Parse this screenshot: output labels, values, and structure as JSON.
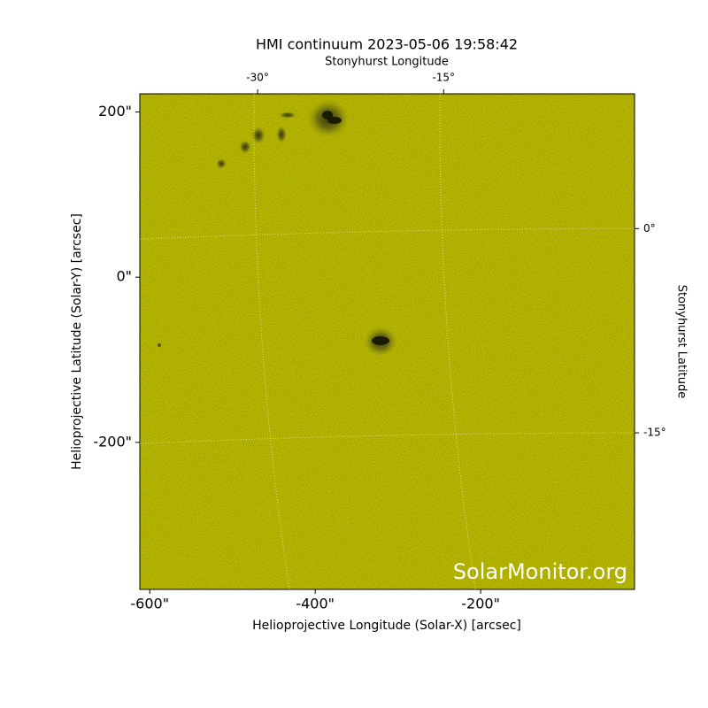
{
  "chart_data": {
    "type": "image",
    "title": "HMI continuum 2023-05-06 19:58:42",
    "x_label": "Helioprojective Longitude (Solar-X) [arcsec]",
    "y_label": "Helioprojective Latitude (Solar-Y) [arcsec]",
    "x2_label": "Stonyhurst Longitude",
    "y2_label": "Stonyhurst Latitude",
    "watermark": "SolarMonitor.org",
    "color": "#c9c900",
    "xlim": [
      -612,
      -14
    ],
    "ylim": [
      -378,
      222
    ],
    "xticks": [
      {
        "value": -600,
        "label": "-600\""
      },
      {
        "value": -400,
        "label": "-400\""
      },
      {
        "value": -200,
        "label": "-200\""
      }
    ],
    "yticks": [
      {
        "value": 200,
        "label": "200\""
      },
      {
        "value": 0,
        "label": "0\""
      },
      {
        "value": -200,
        "label": "-200\""
      }
    ],
    "x2lim": [
      -39.5,
      0.4
    ],
    "x2ticks": [
      {
        "value": -30,
        "label": "-30°"
      },
      {
        "value": -15,
        "label": "-15°"
      }
    ],
    "y2lim": [
      -26.5,
      9.9
    ],
    "y2ticks": [
      {
        "value": 0,
        "label": "0°"
      },
      {
        "value": -15,
        "label": "-15°"
      }
    ],
    "grid": true
  }
}
